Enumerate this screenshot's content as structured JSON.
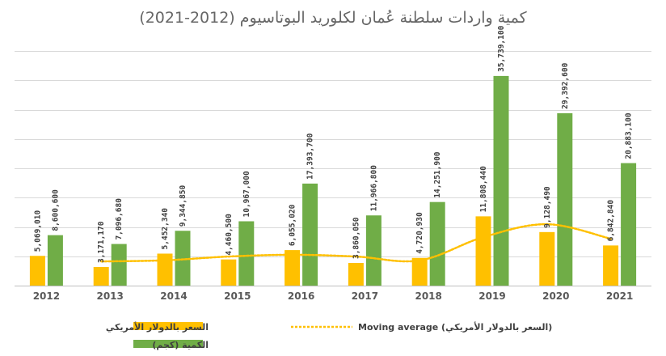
{
  "chart_data": {
    "type": "bar",
    "title": "كمية واردات سلطنة عُمان لكلوريد البوتاسيوم (2012-2021)",
    "categories": [
      "2012",
      "2013",
      "2014",
      "2015",
      "2016",
      "2017",
      "2018",
      "2019",
      "2020",
      "2021"
    ],
    "series": [
      {
        "name": "السعر بالدولار الأمريكي",
        "color": "#FFC000",
        "values": [
          5069010,
          3171170,
          5452340,
          4460500,
          6055020,
          3860050,
          4720930,
          11808440,
          9128490,
          6842840
        ],
        "labels": [
          "5,069,010",
          "3,171,170",
          "5,452,340",
          "4,460,500",
          "6,055,020",
          "3,860,050",
          "4,720,930",
          "11,808,440",
          "9,128,490",
          "6,842,840"
        ]
      },
      {
        "name": "الكمية (كجم)",
        "color": "#70AD47",
        "values": [
          8600600,
          7096680,
          9344850,
          10967000,
          17393700,
          11966800,
          14251900,
          35739100,
          29392600,
          20883100
        ],
        "labels": [
          "8,600,600",
          "7,096,680",
          "9,344,850",
          "10,967,000",
          "17,393,700",
          "11,966,800",
          "14,251,900",
          "35,739,100",
          "29,392,600",
          "20,883,100"
        ]
      }
    ],
    "trendline": {
      "name": "Moving average (السعر بالدولار الأمريكي)",
      "period": 2,
      "color": "#FFC000"
    },
    "ylim": [
      0,
      40000000
    ],
    "grid": true,
    "legend_position": "bottom"
  }
}
